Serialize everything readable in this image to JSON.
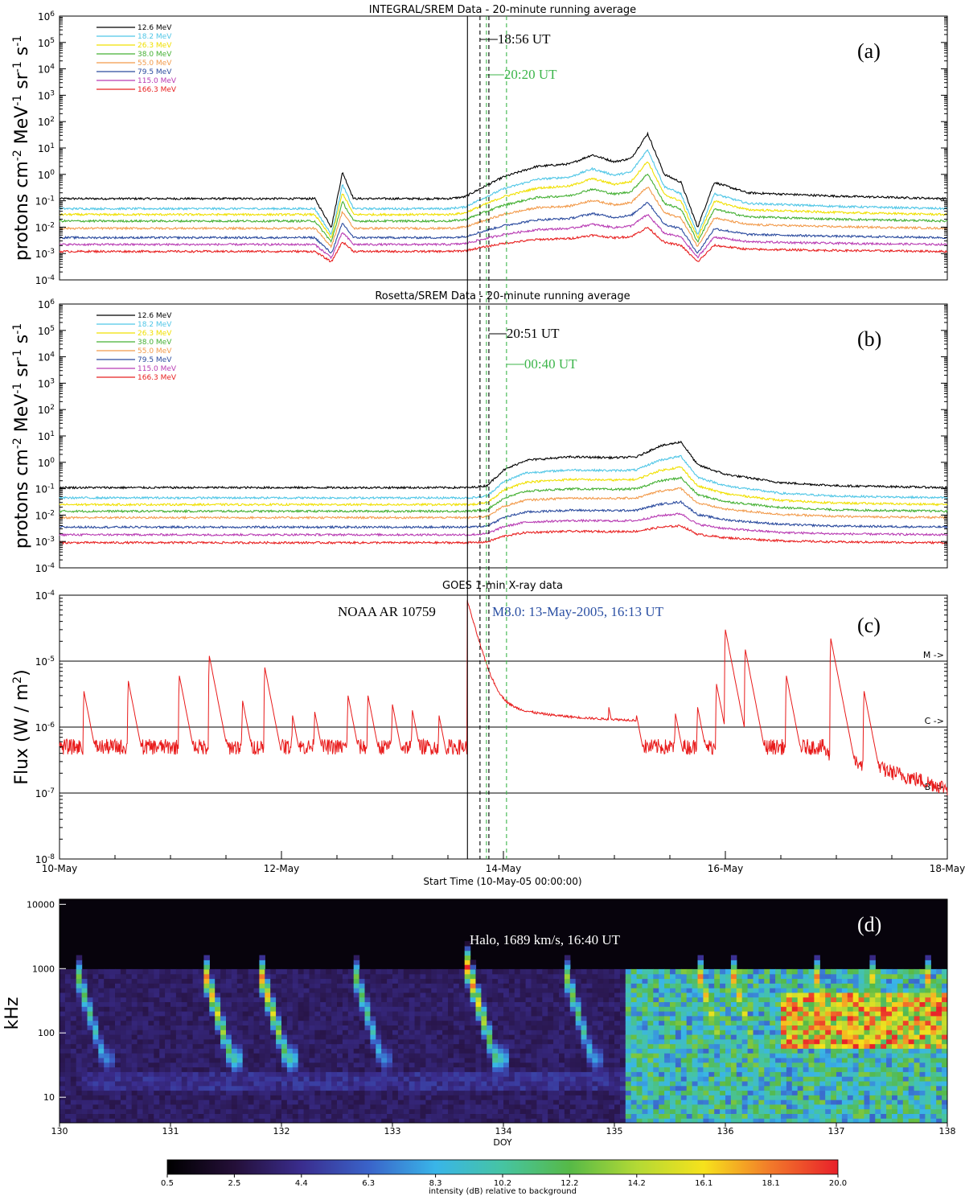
{
  "colors": {
    "axis": "#000000",
    "energy": [
      "#000000",
      "#4fc6e6",
      "#f0e000",
      "#44b033",
      "#f29a4a",
      "#2a4a9e",
      "#b83bb3",
      "#e82020"
    ],
    "flux": "#e81a1a",
    "marker_black": "#000000",
    "marker_green": "#3cb54a",
    "flare_label": "#2a4fa3"
  },
  "chart_data": [
    {
      "panel": "(a)",
      "type": "line",
      "title": "INTEGRAL/SREM Data - 20-minute running average",
      "ylabel": "protons cm-2 MeV-1 sr-1 s-1",
      "scale": "log",
      "ylim": [
        0.0001,
        1000000
      ],
      "y_ticks": [
        "10^-4",
        "10^-2",
        "10^0",
        "10^2",
        "10^4",
        "10^6"
      ],
      "xlim": [
        0,
        8
      ],
      "x_unit": "days since 10-May-05 00:00",
      "legend": [
        "12.6 MeV",
        "18.2 MeV",
        "26.3 MeV",
        "38.0 MeV",
        "55.0 MeV",
        "79.5 MeV",
        "115.0 MeV",
        "166.3 MeV"
      ],
      "series_base": [
        0.12,
        0.05,
        0.03,
        0.017,
        0.009,
        0.004,
        0.0022,
        0.0012
      ],
      "event_profile": {
        "x": [
          0,
          2.3,
          2.45,
          2.55,
          2.65,
          3.5,
          3.65,
          3.8,
          4.0,
          4.3,
          4.6,
          4.8,
          5.0,
          5.15,
          5.3,
          5.45,
          5.6,
          5.75,
          5.9,
          6.2,
          7.0,
          8.0
        ],
        "y_12_6": [
          0.12,
          0.12,
          0.01,
          1.2,
          0.12,
          0.12,
          0.14,
          0.3,
          0.8,
          2.0,
          2.5,
          5.5,
          3.0,
          4.0,
          35.0,
          1.0,
          0.5,
          0.01,
          0.5,
          0.2,
          0.15,
          0.12
        ]
      },
      "markers": [
        {
          "label": "18:56 UT",
          "x": 3.789,
          "color": "black"
        },
        {
          "label": "20:20 UT",
          "x": 3.847,
          "color": "green"
        }
      ]
    },
    {
      "panel": "(b)",
      "type": "line",
      "title": "Rosetta/SREM Data - 20-minute running average",
      "ylabel": "protons cm-2 MeV-1 sr-1 s-1",
      "scale": "log",
      "ylim": [
        0.0001,
        1000000
      ],
      "y_ticks": [
        "10^-4",
        "10^-2",
        "10^0",
        "10^2",
        "10^4",
        "10^6"
      ],
      "xlim": [
        0,
        8
      ],
      "legend": [
        "12.6 MeV",
        "18.2 MeV",
        "26.3 MeV",
        "38.0 MeV",
        "55.0 MeV",
        "79.5 MeV",
        "115.0 MeV",
        "166.3 MeV"
      ],
      "series_base": [
        0.11,
        0.045,
        0.025,
        0.014,
        0.008,
        0.0035,
        0.0018,
        0.0009
      ],
      "event_profile": {
        "x": [
          0,
          3.7,
          3.85,
          4.0,
          4.2,
          4.6,
          5.0,
          5.2,
          5.4,
          5.6,
          5.75,
          6.0,
          6.5,
          7.0,
          8.0
        ],
        "y_12_6": [
          0.11,
          0.11,
          0.13,
          0.5,
          1.2,
          1.6,
          1.5,
          1.6,
          4.0,
          6.0,
          0.8,
          0.35,
          0.17,
          0.13,
          0.11
        ]
      },
      "markers": [
        {
          "label": "20:51 UT",
          "x": 3.869,
          "color": "black"
        },
        {
          "label": "00:40 UT",
          "x": 4.028,
          "color": "green"
        }
      ]
    },
    {
      "panel": "(c)",
      "type": "line",
      "title": "GOES 1-min X-ray data",
      "ylabel": "Flux (W / m2)",
      "scale": "log",
      "ylim": [
        1e-08,
        0.0001
      ],
      "y_ticks": [
        "10^-8",
        "10^-7",
        "10^-6",
        "10^-5",
        "10^-4"
      ],
      "xlabel": "Start Time (10-May-05 00:00:00)",
      "x_tick_labels": [
        "10-May",
        "12-May",
        "14-May",
        "16-May",
        "18-May"
      ],
      "classes": [
        {
          "label": "M ->",
          "flux": 1e-05
        },
        {
          "label": "C ->",
          "flux": 1e-06
        },
        {
          "label": "B ->",
          "flux": 1e-07
        }
      ],
      "annotations": [
        "NOAA AR 10759",
        "M8.0: 13-May-2005, 16:13 UT"
      ],
      "flare": {
        "x": 3.676,
        "peak_flux": 8e-05
      },
      "peaks": [
        {
          "x": 0.22,
          "flux": 3.5e-06
        },
        {
          "x": 0.62,
          "flux": 5e-06
        },
        {
          "x": 1.08,
          "flux": 6e-06
        },
        {
          "x": 1.35,
          "flux": 1.2e-05
        },
        {
          "x": 1.65,
          "flux": 2.5e-06
        },
        {
          "x": 1.85,
          "flux": 8e-06
        },
        {
          "x": 2.1,
          "flux": 1.5e-06
        },
        {
          "x": 2.3,
          "flux": 1.7e-06
        },
        {
          "x": 2.6,
          "flux": 3e-06
        },
        {
          "x": 2.78,
          "flux": 3e-06
        },
        {
          "x": 3.0,
          "flux": 2.2e-06
        },
        {
          "x": 3.18,
          "flux": 1.8e-06
        },
        {
          "x": 3.42,
          "flux": 1.5e-06
        },
        {
          "x": 4.95,
          "flux": 2e-06
        },
        {
          "x": 5.2,
          "flux": 1.5e-06
        },
        {
          "x": 5.55,
          "flux": 1.6e-06
        },
        {
          "x": 5.75,
          "flux": 2e-06
        },
        {
          "x": 5.92,
          "flux": 4.5e-06
        },
        {
          "x": 6.0,
          "flux": 3e-05
        },
        {
          "x": 6.18,
          "flux": 1.5e-05
        },
        {
          "x": 6.55,
          "flux": 6e-06
        },
        {
          "x": 6.95,
          "flux": 2.2e-05
        },
        {
          "x": 7.25,
          "flux": 3.5e-06
        }
      ]
    },
    {
      "panel": "(d)",
      "type": "heatmap",
      "ylabel": "kHz",
      "xlabel": "DOY",
      "scale": "log",
      "ylim": [
        4,
        12000
      ],
      "y_tick_labels": [
        "10",
        "100",
        "1000",
        "10000"
      ],
      "x_tick_labels": [
        "130",
        "131",
        "132",
        "133",
        "134",
        "135",
        "136",
        "137",
        "138"
      ],
      "annotation": "Halo, 1689 km/s, 16:40 UT",
      "colorbar": {
        "label": "intensity (dB) relative to background",
        "ticks": [
          "0.5",
          "2.5",
          "4.4",
          "6.3",
          "8.3",
          "10.2",
          "12.2",
          "14.2",
          "16.1",
          "18.1",
          "20.0"
        ],
        "range": [
          0.5,
          20.0
        ]
      },
      "bursts": [
        {
          "doy": 130.15,
          "intensity": 14
        },
        {
          "doy": 131.3,
          "intensity": 20
        },
        {
          "doy": 131.8,
          "intensity": 20
        },
        {
          "doy": 132.65,
          "intensity": 14
        },
        {
          "doy": 133.68,
          "intensity": 20
        },
        {
          "doy": 134.55,
          "intensity": 15
        },
        {
          "doy": 135.75,
          "intensity": 20
        },
        {
          "doy": 136.05,
          "intensity": 20
        },
        {
          "doy": 136.8,
          "intensity": 20
        },
        {
          "doy": 137.3,
          "intensity": 18
        },
        {
          "doy": 137.8,
          "intensity": 20
        }
      ]
    }
  ],
  "panel_labels": [
    "(a)",
    "(b)",
    "(c)",
    "(d)"
  ],
  "texts": {
    "a_title": "INTEGRAL/SREM Data - 20-minute running average",
    "b_title": "Rosetta/SREM Data - 20-minute running average",
    "c_title": "GOES 1-min X-ray data",
    "c_xlabel": "Start Time (10-May-05 00:00:00)",
    "d_xlabel": "DOY",
    "d_colorbar_label": "intensity (dB) relative to background",
    "ar_label": "NOAA AR 10759",
    "flare_label": "M8.0: 13-May-2005, 16:13 UT",
    "halo_label": "Halo, 1689 km/s, 16:40 UT",
    "a_mark1": "18:56 UT",
    "a_mark2": "20:20 UT",
    "b_mark1": "20:51 UT",
    "b_mark2": "00:40 UT"
  }
}
